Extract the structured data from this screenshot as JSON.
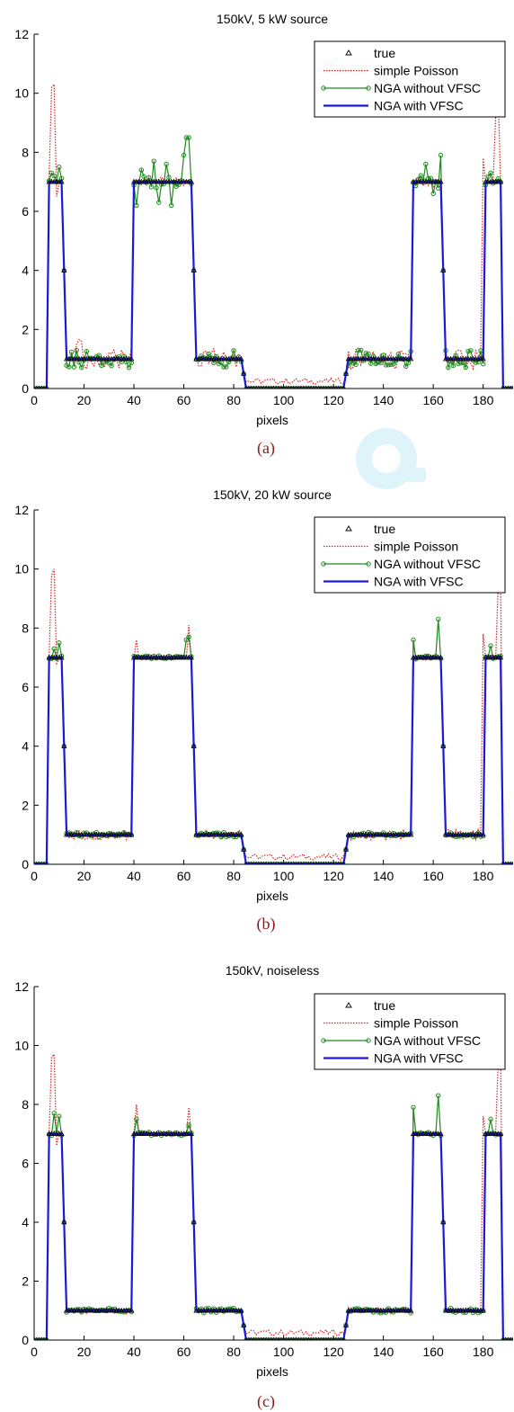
{
  "colors": {
    "true": "#000000",
    "simple_poisson": "#e02020",
    "nga_without_vfsc": "#1f8a1f",
    "nga_with_vfsc": "#1a1ad6"
  },
  "chart_data": [
    {
      "type": "line",
      "caption": "(a)",
      "title": "150kV, 5 kW source",
      "xlabel": "pixels",
      "ylabel": "",
      "xlim": [
        0,
        192
      ],
      "ylim": [
        0,
        12
      ],
      "xticks": [
        0,
        20,
        40,
        60,
        80,
        100,
        120,
        140,
        160,
        180
      ],
      "yticks": [
        0,
        2,
        4,
        6,
        8,
        10,
        12
      ],
      "legend_position": "top-right",
      "legend": [
        "true",
        "simple Poisson",
        "NGA without VFSC",
        "NGA with VFSC"
      ],
      "segments": [
        [
          0,
          5,
          0
        ],
        [
          6,
          11,
          7
        ],
        [
          13,
          39,
          1
        ],
        [
          40,
          63,
          7
        ],
        [
          65,
          83,
          1
        ],
        [
          85,
          124,
          0
        ],
        [
          126,
          151,
          1
        ],
        [
          152,
          163,
          7
        ],
        [
          165,
          180,
          1
        ],
        [
          181,
          187,
          7
        ],
        [
          188,
          192,
          0
        ]
      ],
      "poisson_spikes": [
        [
          7,
          10.2
        ],
        [
          8,
          10.3
        ],
        [
          9,
          6.5
        ],
        [
          17,
          1.5
        ],
        [
          18,
          1.65
        ],
        [
          19,
          1.6
        ],
        [
          185,
          9.2
        ],
        [
          186,
          10.0
        ],
        [
          180,
          7.8
        ]
      ],
      "nga_spikes": [
        [
          7,
          7.3
        ],
        [
          8,
          7.2
        ],
        [
          10,
          7.5
        ],
        [
          41,
          6.2
        ],
        [
          43,
          7.4
        ],
        [
          48,
          7.7
        ],
        [
          50,
          6.3
        ],
        [
          53,
          7.6
        ],
        [
          55,
          6.2
        ],
        [
          60,
          7.9
        ],
        [
          61,
          8.5
        ],
        [
          62,
          8.5
        ],
        [
          130,
          1.3
        ],
        [
          131,
          1.3
        ],
        [
          157,
          7.6
        ],
        [
          160,
          6.6
        ],
        [
          163,
          7.9
        ],
        [
          183,
          7.3
        ],
        [
          185,
          7.0
        ]
      ]
    },
    {
      "type": "line",
      "caption": "(b)",
      "title": "150kV, 20 kW source",
      "xlabel": "pixels",
      "ylabel": "",
      "xlim": [
        0,
        192
      ],
      "ylim": [
        0,
        12
      ],
      "xticks": [
        0,
        20,
        40,
        60,
        80,
        100,
        120,
        140,
        160,
        180
      ],
      "yticks": [
        0,
        2,
        4,
        6,
        8,
        10,
        12
      ],
      "legend_position": "top-right",
      "legend": [
        "true",
        "simple Poisson",
        "NGA without VFSC",
        "NGA with VFSC"
      ],
      "segments": [
        [
          0,
          5,
          0
        ],
        [
          6,
          11,
          7
        ],
        [
          13,
          39,
          1
        ],
        [
          40,
          63,
          7
        ],
        [
          65,
          83,
          1
        ],
        [
          85,
          124,
          0
        ],
        [
          126,
          151,
          1
        ],
        [
          152,
          163,
          7
        ],
        [
          165,
          180,
          1
        ],
        [
          181,
          187,
          7
        ],
        [
          188,
          192,
          0
        ]
      ],
      "poisson_spikes": [
        [
          7,
          9.8
        ],
        [
          8,
          10.0
        ],
        [
          9,
          6.8
        ],
        [
          41,
          7.6
        ],
        [
          62,
          8.1
        ],
        [
          152,
          7.6
        ],
        [
          180,
          7.8
        ],
        [
          186,
          9.4
        ],
        [
          187,
          9.6
        ]
      ],
      "nga_spikes": [
        [
          8,
          7.3
        ],
        [
          10,
          7.5
        ],
        [
          61,
          7.6
        ],
        [
          62,
          7.7
        ],
        [
          152,
          7.6
        ],
        [
          162,
          8.3
        ],
        [
          183,
          7.4
        ]
      ]
    },
    {
      "type": "line",
      "caption": "(c)",
      "title": "150kV, noiseless",
      "xlabel": "pixels",
      "ylabel": "",
      "xlim": [
        0,
        192
      ],
      "ylim": [
        0,
        12
      ],
      "xticks": [
        0,
        20,
        40,
        60,
        80,
        100,
        120,
        140,
        160,
        180
      ],
      "yticks": [
        0,
        2,
        4,
        6,
        8,
        10,
        12
      ],
      "legend_position": "top-right",
      "legend": [
        "true",
        "simple Poisson",
        "NGA without VFSC",
        "NGA with VFSC"
      ],
      "segments": [
        [
          0,
          5,
          0
        ],
        [
          6,
          11,
          7
        ],
        [
          13,
          39,
          1
        ],
        [
          40,
          63,
          7
        ],
        [
          65,
          83,
          1
        ],
        [
          85,
          124,
          0
        ],
        [
          126,
          151,
          1
        ],
        [
          152,
          163,
          7
        ],
        [
          165,
          180,
          1
        ],
        [
          181,
          187,
          7
        ],
        [
          188,
          192,
          0
        ]
      ],
      "poisson_spikes": [
        [
          7,
          9.6
        ],
        [
          8,
          9.7
        ],
        [
          9,
          6.6
        ],
        [
          41,
          8.0
        ],
        [
          62,
          7.9
        ],
        [
          152,
          7.8
        ],
        [
          180,
          7.6
        ],
        [
          186,
          9.4
        ],
        [
          187,
          9.8
        ]
      ],
      "nga_spikes": [
        [
          8,
          7.7
        ],
        [
          10,
          7.6
        ],
        [
          41,
          7.5
        ],
        [
          62,
          7.3
        ],
        [
          152,
          7.9
        ],
        [
          162,
          8.3
        ],
        [
          183,
          7.5
        ]
      ]
    }
  ]
}
